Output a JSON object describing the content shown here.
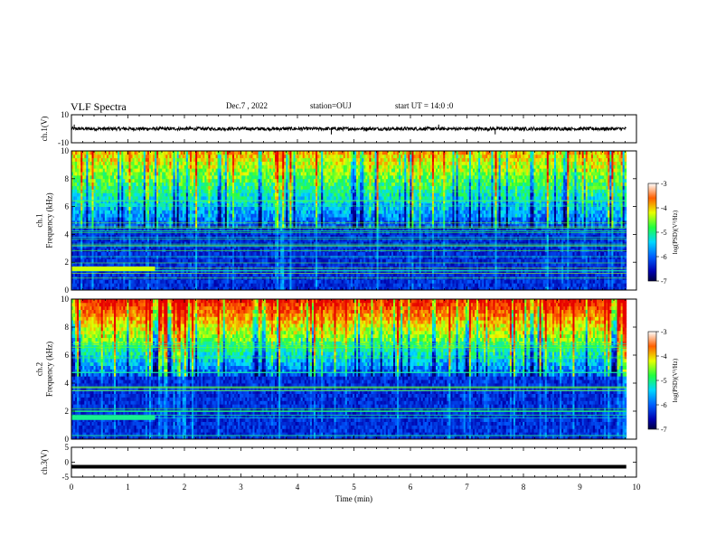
{
  "header": {
    "title": "VLF Spectra",
    "date": "Dec.7 , 2022",
    "station": "station=OUJ",
    "start": "start UT = 14:0 :0"
  },
  "chart_data": [
    {
      "type": "line",
      "ylabel": "ch.1(V)",
      "ylim": [
        -10,
        10
      ],
      "yticks": [
        "10",
        "-10"
      ],
      "xlim": [
        0,
        10
      ],
      "x_end": 9.82,
      "baseline": 0,
      "amplitude": 1.2,
      "spikes": [
        {
          "x": 0.05,
          "y": 3
        },
        {
          "x": 4.6,
          "y": -4
        },
        {
          "x": 6.5,
          "y": 3
        },
        {
          "x": 7.5,
          "y": -4
        }
      ],
      "color": "#000000"
    },
    {
      "type": "heatmap",
      "ylabel": "ch.1\nFrequency (kHz)",
      "ylim": [
        0,
        10
      ],
      "yticks": [
        "0",
        "2",
        "4",
        "6",
        "8",
        "10"
      ],
      "xlim": [
        0,
        10
      ],
      "x_end": 9.82,
      "colorbar": {
        "label": "log(PSD)(V²/Hz)",
        "ticks": [
          "-3",
          "-4",
          "-5",
          "-6",
          "-7"
        ],
        "range": [
          -7,
          -3
        ]
      }
    },
    {
      "type": "heatmap",
      "ylabel": "ch.2\nFrequency (kHz)",
      "ylim": [
        0,
        10
      ],
      "yticks": [
        "0",
        "2",
        "4",
        "6",
        "8",
        "10"
      ],
      "xlim": [
        0,
        10
      ],
      "x_end": 9.82,
      "colorbar": {
        "label": "log(PSD)(V²/Hz)",
        "ticks": [
          "-3",
          "-4",
          "-5",
          "-6",
          "-7"
        ],
        "range": [
          -7,
          -3
        ]
      }
    },
    {
      "type": "line",
      "ylabel": "ch.3(V)",
      "ylim": [
        -5,
        5
      ],
      "yticks": [
        "5",
        "0",
        "-5"
      ],
      "xlim": [
        0,
        10
      ],
      "x_end": 9.82,
      "baseline": -1.5,
      "amplitude": 0,
      "color": "#000000"
    }
  ],
  "xaxis": {
    "label": "Time (min)",
    "ticks": [
      "0",
      "1",
      "2",
      "3",
      "4",
      "5",
      "6",
      "7",
      "8",
      "9",
      "10"
    ]
  }
}
